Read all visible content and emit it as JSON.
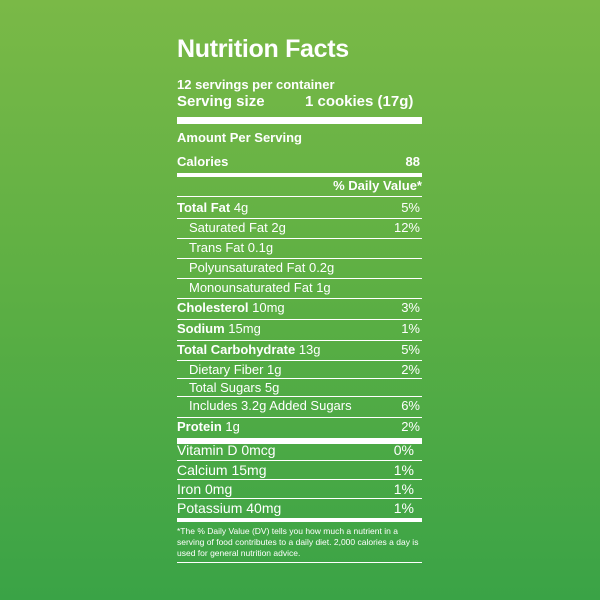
{
  "label": {
    "title": "Nutrition Facts",
    "servings_per_container": "12 servings per container",
    "serving_size_label": "Serving size",
    "serving_size_value": "1 cookies (17g)",
    "amount_per_serving": "Amount Per Serving",
    "calories_label": "Calories",
    "calories_value": "88",
    "dv_header": "% Daily Value*"
  },
  "nutrients": [
    {
      "bold_name": "Total Fat",
      "amount": " 4g",
      "dv": "5%"
    },
    {
      "name": "Saturated Fat 2g",
      "dv": "12%"
    },
    {
      "name": "Trans Fat 0.1g",
      "dv": ""
    },
    {
      "name": "Polyunsaturated Fat 0.2g",
      "dv": ""
    },
    {
      "name": "Monounsaturated Fat 1g",
      "dv": ""
    },
    {
      "bold_name": "Cholesterol",
      "amount": " 10mg",
      "dv": "3%"
    },
    {
      "bold_name": "Sodium",
      "amount": " 15mg",
      "dv": "1%"
    },
    {
      "bold_name": "Total Carbohydrate",
      "amount": " 13g",
      "dv": "5%"
    },
    {
      "name": "Dietary Fiber 1g",
      "dv": "2%"
    },
    {
      "name": "Total Sugars 5g",
      "dv": ""
    },
    {
      "name": "Includes 3.2g Added Sugars",
      "dv": "6%"
    },
    {
      "bold_name": "Protein",
      "amount": " 1g",
      "dv": "2%"
    }
  ],
  "vitamins": [
    {
      "name": "Vitamin D 0mcg",
      "dv": "0%"
    },
    {
      "name": "Calcium 15mg",
      "dv": "1%"
    },
    {
      "name": "Iron 0mg",
      "dv": "1%"
    },
    {
      "name": "Potassium 40mg",
      "dv": "1%"
    }
  ],
  "footnote": "*The % Daily Value (DV) tells you how much a nutrient in a serving of food contributes to a daily diet. 2,000 calories a day is used for general nutrition advice."
}
